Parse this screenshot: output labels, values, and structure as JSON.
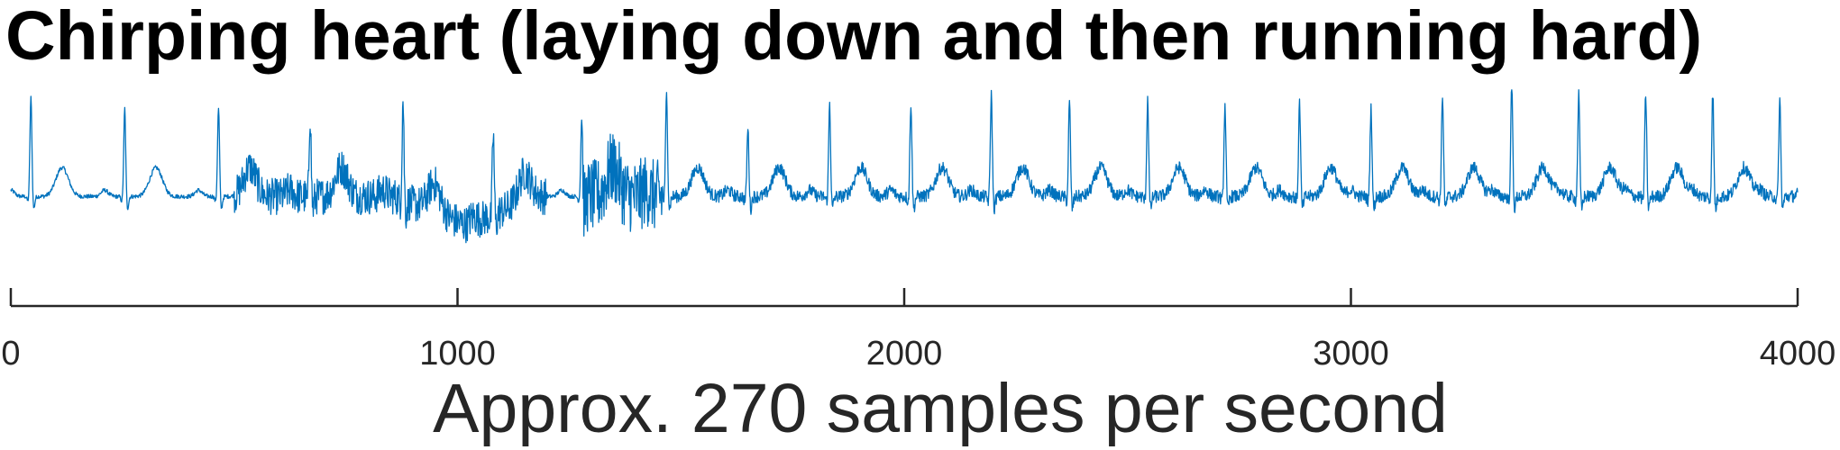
{
  "chart_data": {
    "type": "line",
    "title": "Chirping heart (laying down and then running hard)",
    "xlabel": "Approx. 270 samples per second",
    "ylabel": "",
    "xlim": [
      0,
      4000
    ],
    "xticks": [
      0,
      1000,
      2000,
      3000,
      4000
    ],
    "xtick_labels": [
      "0",
      "1000",
      "2000",
      "3000",
      "4000"
    ],
    "y_axis_visible": false,
    "ylim": [
      -1.4,
      2.2
    ],
    "grid": false,
    "series": [
      {
        "color": "#0072BD",
        "r_peak_positions": [
          45,
          255,
          465,
          670,
          878,
          1080,
          1278,
          1468,
          1650,
          1833,
          2015,
          2195,
          2370,
          2545,
          2718,
          2885,
          3045,
          3205,
          3360,
          3510,
          3660,
          3810,
          3960
        ],
        "r_peak_heights": [
          1.9,
          1.7,
          1.7,
          1.6,
          1.95,
          1.55,
          1.5,
          1.95,
          1.3,
          1.8,
          1.8,
          1.95,
          1.8,
          1.9,
          1.75,
          1.8,
          1.7,
          1.95,
          2.1,
          1.95,
          1.95,
          2.0,
          1.85
        ],
        "noise_regions": [
          {
            "from": 500,
            "to": 1200,
            "amplitude": 0.35
          },
          {
            "from": 1280,
            "to": 1460,
            "amplitude": 0.7
          },
          {
            "from": 1460,
            "to": 4000,
            "amplitude": 0.12
          }
        ],
        "baseline_dip_regions": [
          {
            "from": 920,
            "to": 1120,
            "depth": -0.55
          }
        ]
      }
    ]
  }
}
